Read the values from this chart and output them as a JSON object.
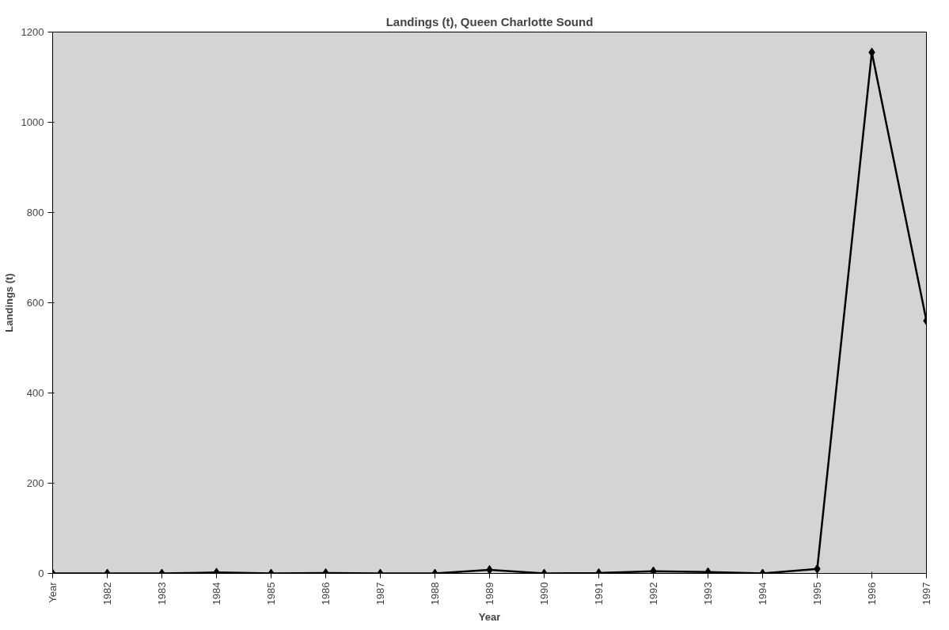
{
  "chart_data": {
    "type": "line",
    "title": "Landings (t), Queen Charlotte Sound",
    "xlabel": "Year",
    "ylabel": "Landings (t)",
    "categories": [
      "Year",
      "1982",
      "1983",
      "1984",
      "1985",
      "1986",
      "1987",
      "1988",
      "1989",
      "1990",
      "1991",
      "1992",
      "1993",
      "1994",
      "1995",
      "1996",
      "1997"
    ],
    "series": [
      {
        "color": "#000000",
        "values": [
          0,
          0,
          0,
          2,
          0,
          1,
          0,
          0,
          8,
          0,
          1,
          5,
          3,
          0,
          10,
          1155,
          560
        ]
      }
    ],
    "ylim": [
      0,
      1200
    ],
    "yticks": [
      0,
      200,
      400,
      600,
      800,
      1000,
      1200
    ],
    "grid": false,
    "marker": "diamond",
    "line_style": "solid"
  }
}
